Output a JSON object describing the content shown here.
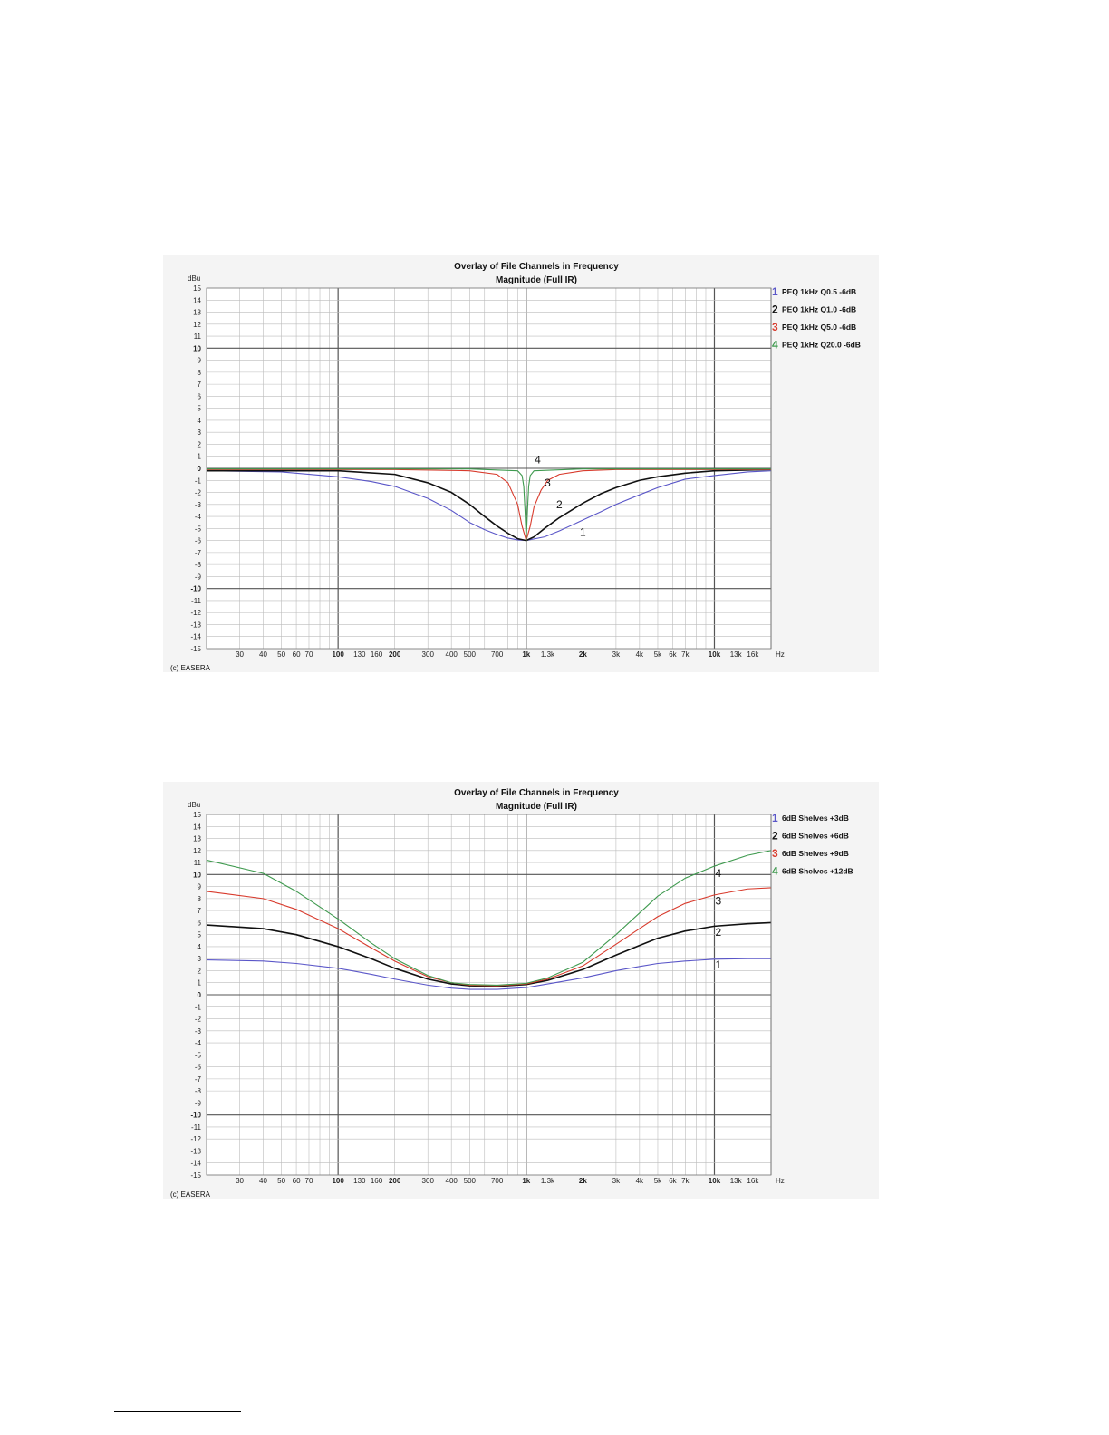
{
  "chart_data": [
    {
      "type": "line",
      "title": "Overlay of File Channels in Frequency",
      "subtitle": "Magnitude (Full IR)",
      "ylabel": "dBu",
      "xunit": "Hz",
      "xscale": "log",
      "xlim": [
        20,
        20000
      ],
      "ylim": [
        -15,
        15
      ],
      "grid": true,
      "legend_position": "right",
      "copyright": "(c) EASERA",
      "yticks": [
        "15",
        "14",
        "13",
        "12",
        "11",
        "10",
        "9",
        "8",
        "7",
        "6",
        "5",
        "4",
        "3",
        "2",
        "1",
        "0",
        "-1",
        "-2",
        "-3",
        "-4",
        "-5",
        "-6",
        "-7",
        "-8",
        "-9",
        "-10",
        "-11",
        "-12",
        "-13",
        "-14",
        "-15"
      ],
      "xticks": [
        {
          "value": 30,
          "label": "30"
        },
        {
          "value": 40,
          "label": "40"
        },
        {
          "value": 50,
          "label": "50"
        },
        {
          "value": 60,
          "label": "60"
        },
        {
          "value": 70,
          "label": "70"
        },
        {
          "value": 100,
          "label": "100"
        },
        {
          "value": 130,
          "label": "130"
        },
        {
          "value": 160,
          "label": "160"
        },
        {
          "value": 200,
          "label": "200"
        },
        {
          "value": 300,
          "label": "300"
        },
        {
          "value": 400,
          "label": "400"
        },
        {
          "value": 500,
          "label": "500"
        },
        {
          "value": 700,
          "label": "700"
        },
        {
          "value": 1000,
          "label": "1k"
        },
        {
          "value": 1300,
          "label": "1.3k"
        },
        {
          "value": 2000,
          "label": "2k"
        },
        {
          "value": 3000,
          "label": "3k"
        },
        {
          "value": 4000,
          "label": "4k"
        },
        {
          "value": 5000,
          "label": "5k"
        },
        {
          "value": 6000,
          "label": "6k"
        },
        {
          "value": 7000,
          "label": "7k"
        },
        {
          "value": 10000,
          "label": "10k"
        },
        {
          "value": 13000,
          "label": "13k"
        },
        {
          "value": 16000,
          "label": "16k"
        }
      ],
      "series": [
        {
          "name": "PEQ 1kHz Q0.5 -6dB",
          "number": "1",
          "color": "#5a56c8",
          "x": [
            20,
            50,
            100,
            150,
            200,
            300,
            400,
            500,
            600,
            700,
            800,
            900,
            1000,
            1250,
            1500,
            2000,
            2500,
            3000,
            4000,
            5000,
            7000,
            10000,
            15000,
            20000
          ],
          "y": [
            -0.2,
            -0.3,
            -0.7,
            -1.1,
            -1.5,
            -2.5,
            -3.5,
            -4.5,
            -5.1,
            -5.5,
            -5.8,
            -5.95,
            -6.0,
            -5.7,
            -5.2,
            -4.3,
            -3.6,
            -3.0,
            -2.2,
            -1.6,
            -0.9,
            -0.6,
            -0.3,
            -0.2
          ]
        },
        {
          "name": "PEQ 1kHz Q1.0 -6dB",
          "number": "2",
          "color": "#111111",
          "x": [
            20,
            100,
            200,
            300,
            400,
            500,
            600,
            700,
            800,
            900,
            1000,
            1100,
            1250,
            1500,
            2000,
            2500,
            3000,
            4000,
            5000,
            7000,
            10000,
            20000
          ],
          "y": [
            -0.2,
            -0.2,
            -0.5,
            -1.2,
            -2.0,
            -3.0,
            -4.0,
            -4.8,
            -5.4,
            -5.85,
            -6.0,
            -5.7,
            -5.0,
            -4.1,
            -2.9,
            -2.1,
            -1.6,
            -1.0,
            -0.7,
            -0.4,
            -0.2,
            -0.1
          ]
        },
        {
          "name": "PEQ 1kHz Q5.0 -6dB",
          "number": "3",
          "color": "#d83a2c",
          "x": [
            20,
            200,
            500,
            700,
            800,
            900,
            950,
            1000,
            1050,
            1100,
            1200,
            1300,
            1500,
            2000,
            3000,
            20000
          ],
          "y": [
            -0.1,
            -0.1,
            -0.2,
            -0.5,
            -1.2,
            -3.0,
            -4.8,
            -6.0,
            -4.8,
            -3.2,
            -1.8,
            -1.0,
            -0.5,
            -0.2,
            -0.1,
            -0.1
          ]
        },
        {
          "name": "PEQ 1kHz Q20.0 -6dB",
          "number": "4",
          "color": "#3f9a4f",
          "x": [
            20,
            500,
            900,
            950,
            970,
            985,
            1000,
            1015,
            1030,
            1050,
            1100,
            2000,
            20000
          ],
          "y": [
            -0.05,
            -0.05,
            -0.2,
            -0.6,
            -1.5,
            -3.5,
            -6.0,
            -3.5,
            -1.5,
            -0.6,
            -0.2,
            -0.05,
            -0.05
          ]
        }
      ],
      "annotations": [
        {
          "label": "4",
          "x": 1150,
          "y": 0.4
        },
        {
          "label": "3",
          "x": 1300,
          "y": -1.5
        },
        {
          "label": "2",
          "x": 1500,
          "y": -3.3
        },
        {
          "label": "1",
          "x": 2000,
          "y": -5.6
        }
      ]
    },
    {
      "type": "line",
      "title": "Overlay of File Channels in Frequency",
      "subtitle": "Magnitude (Full IR)",
      "ylabel": "dBu",
      "xunit": "Hz",
      "xscale": "log",
      "xlim": [
        20,
        20000
      ],
      "ylim": [
        -15,
        15
      ],
      "grid": true,
      "legend_position": "right",
      "copyright": "(c) EASERA",
      "yticks": [
        "15",
        "14",
        "13",
        "12",
        "11",
        "10",
        "9",
        "8",
        "7",
        "6",
        "5",
        "4",
        "3",
        "2",
        "1",
        "0",
        "-1",
        "-2",
        "-3",
        "-4",
        "-5",
        "-6",
        "-7",
        "-8",
        "-9",
        "-10",
        "-11",
        "-12",
        "-13",
        "-14",
        "-15"
      ],
      "xticks": [
        {
          "value": 30,
          "label": "30"
        },
        {
          "value": 40,
          "label": "40"
        },
        {
          "value": 50,
          "label": "50"
        },
        {
          "value": 60,
          "label": "60"
        },
        {
          "value": 70,
          "label": "70"
        },
        {
          "value": 100,
          "label": "100"
        },
        {
          "value": 130,
          "label": "130"
        },
        {
          "value": 160,
          "label": "160"
        },
        {
          "value": 200,
          "label": "200"
        },
        {
          "value": 300,
          "label": "300"
        },
        {
          "value": 400,
          "label": "400"
        },
        {
          "value": 500,
          "label": "500"
        },
        {
          "value": 700,
          "label": "700"
        },
        {
          "value": 1000,
          "label": "1k"
        },
        {
          "value": 1300,
          "label": "1.3k"
        },
        {
          "value": 2000,
          "label": "2k"
        },
        {
          "value": 3000,
          "label": "3k"
        },
        {
          "value": 4000,
          "label": "4k"
        },
        {
          "value": 5000,
          "label": "5k"
        },
        {
          "value": 6000,
          "label": "6k"
        },
        {
          "value": 7000,
          "label": "7k"
        },
        {
          "value": 10000,
          "label": "10k"
        },
        {
          "value": 13000,
          "label": "13k"
        },
        {
          "value": 16000,
          "label": "16k"
        }
      ],
      "series": [
        {
          "name": "6dB Shelves +3dB",
          "number": "1",
          "color": "#5a56c8",
          "x": [
            20,
            40,
            60,
            100,
            150,
            200,
            300,
            400,
            500,
            700,
            1000,
            1300,
            2000,
            3000,
            4000,
            5000,
            7000,
            10000,
            15000,
            20000
          ],
          "y": [
            2.9,
            2.8,
            2.6,
            2.2,
            1.7,
            1.3,
            0.8,
            0.55,
            0.45,
            0.45,
            0.6,
            0.9,
            1.4,
            2.0,
            2.35,
            2.6,
            2.8,
            2.95,
            3.0,
            3.0
          ]
        },
        {
          "name": "6dB Shelves +6dB",
          "number": "2",
          "color": "#111111",
          "x": [
            20,
            40,
            60,
            100,
            150,
            200,
            300,
            400,
            500,
            700,
            1000,
            1300,
            2000,
            3000,
            4000,
            5000,
            7000,
            10000,
            15000,
            20000
          ],
          "y": [
            5.8,
            5.5,
            5.0,
            4.0,
            3.0,
            2.2,
            1.3,
            0.9,
            0.75,
            0.7,
            0.85,
            1.2,
            2.1,
            3.3,
            4.1,
            4.7,
            5.3,
            5.7,
            5.9,
            6.0
          ]
        },
        {
          "name": "6dB Shelves +9dB",
          "number": "3",
          "color": "#d83a2c",
          "x": [
            20,
            40,
            60,
            100,
            150,
            200,
            300,
            400,
            500,
            700,
            1000,
            1300,
            2000,
            3000,
            4000,
            5000,
            7000,
            10000,
            15000,
            20000
          ],
          "y": [
            8.6,
            8.0,
            7.1,
            5.5,
            3.9,
            2.8,
            1.5,
            1.0,
            0.8,
            0.75,
            0.9,
            1.3,
            2.4,
            4.2,
            5.5,
            6.5,
            7.6,
            8.3,
            8.8,
            8.9
          ]
        },
        {
          "name": "6dB Shelves +12dB",
          "number": "4",
          "color": "#3f9a4f",
          "x": [
            20,
            40,
            60,
            100,
            150,
            200,
            300,
            400,
            500,
            700,
            1000,
            1300,
            2000,
            3000,
            4000,
            5000,
            7000,
            10000,
            15000,
            20000
          ],
          "y": [
            11.2,
            10.1,
            8.6,
            6.3,
            4.3,
            3.0,
            1.6,
            1.0,
            0.85,
            0.8,
            0.95,
            1.4,
            2.7,
            5.0,
            6.8,
            8.2,
            9.7,
            10.7,
            11.6,
            12.0
          ]
        }
      ],
      "annotations": [
        {
          "label": "4",
          "x": 10500,
          "y": 9.8
        },
        {
          "label": "3",
          "x": 10500,
          "y": 7.5
        },
        {
          "label": "2",
          "x": 10500,
          "y": 4.9
        },
        {
          "label": "1",
          "x": 10500,
          "y": 2.2
        }
      ]
    }
  ]
}
